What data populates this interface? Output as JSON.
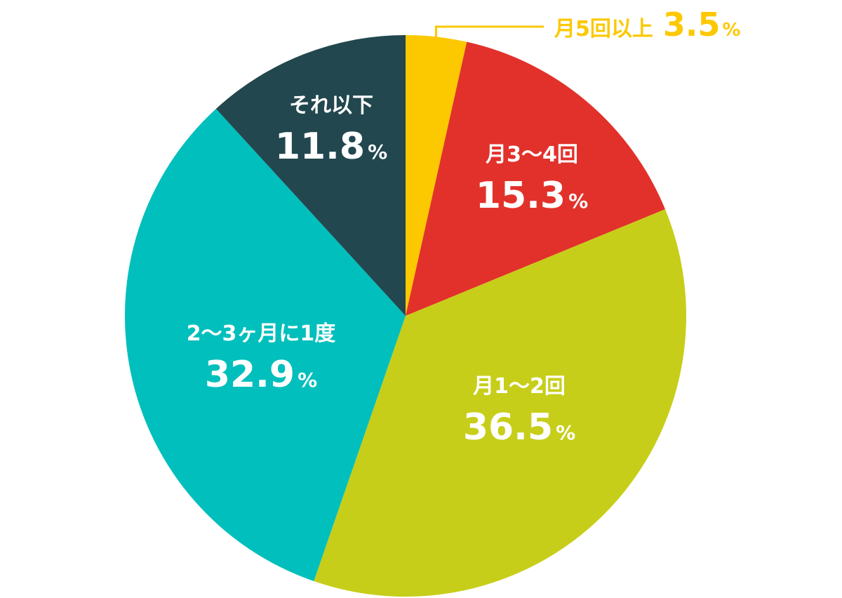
{
  "chart_data": {
    "type": "pie",
    "start_angle_deg": 0,
    "direction": "clockwise",
    "slices": [
      {
        "label": "月5回以上",
        "value": 3.5,
        "value_text": "3.5",
        "unit": "%",
        "color": "#FCC800",
        "label_color": "#FCC800",
        "label_placement": "outside-callout"
      },
      {
        "label": "月3～4回",
        "value": 15.3,
        "value_text": "15.3",
        "unit": "%",
        "color": "#E2312B",
        "label_color": "#FFFFFF",
        "label_placement": "inside"
      },
      {
        "label": "月1～2回",
        "value": 36.5,
        "value_text": "36.5",
        "unit": "%",
        "color": "#C7CE19",
        "label_color": "#FFFFFF",
        "label_placement": "inside"
      },
      {
        "label": "2～3ヶ月に1度",
        "value": 32.9,
        "value_text": "32.9",
        "unit": "%",
        "color": "#00BFBC",
        "label_color": "#FFFFFF",
        "label_placement": "inside"
      },
      {
        "label": "それ以下",
        "value": 11.8,
        "value_text": "11.8",
        "unit": "%",
        "color": "#22474E",
        "label_color": "#FFFFFF",
        "label_placement": "inside"
      }
    ]
  }
}
